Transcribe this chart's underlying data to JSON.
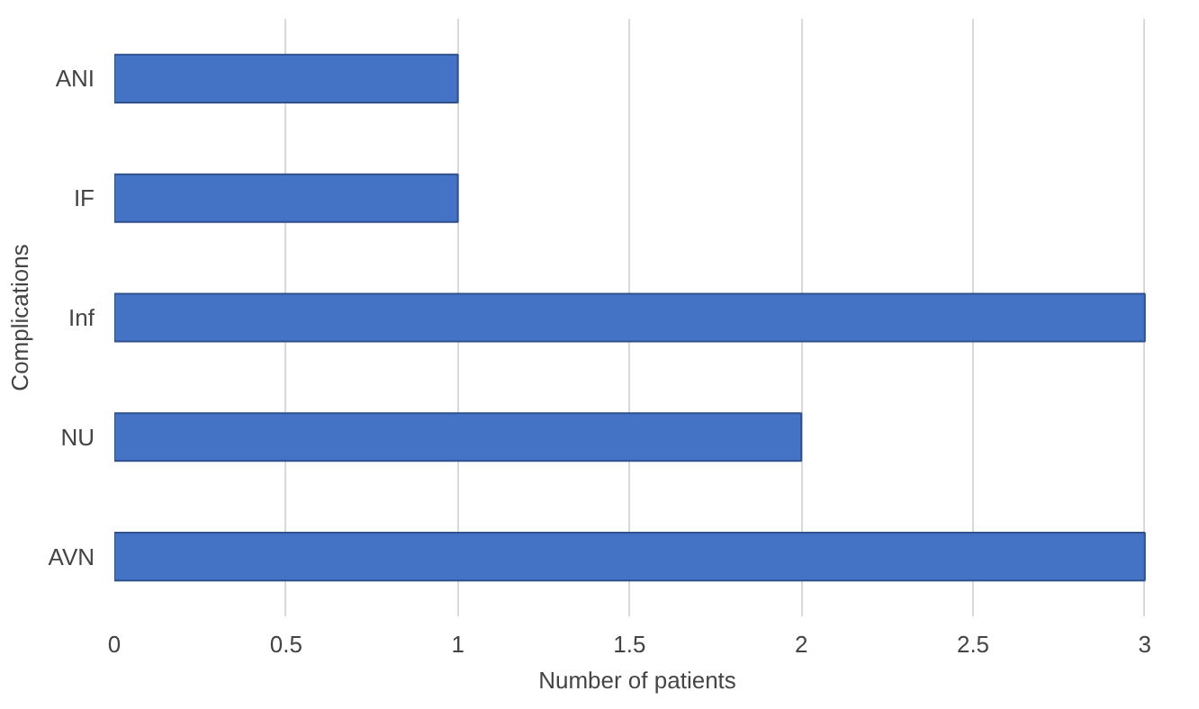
{
  "chart_data": {
    "type": "bar",
    "orientation": "horizontal",
    "xlabel": "Number of patients",
    "ylabel": "Complications",
    "categories": [
      "ANI",
      "IF",
      "Inf",
      "NU",
      "AVN"
    ],
    "values": [
      1,
      1,
      3,
      2,
      3
    ],
    "color": "#4472c4",
    "xlim": [
      0,
      3
    ],
    "xticks": [
      0,
      0.5,
      1,
      1.5,
      2,
      2.5,
      3
    ],
    "grid": "x"
  }
}
